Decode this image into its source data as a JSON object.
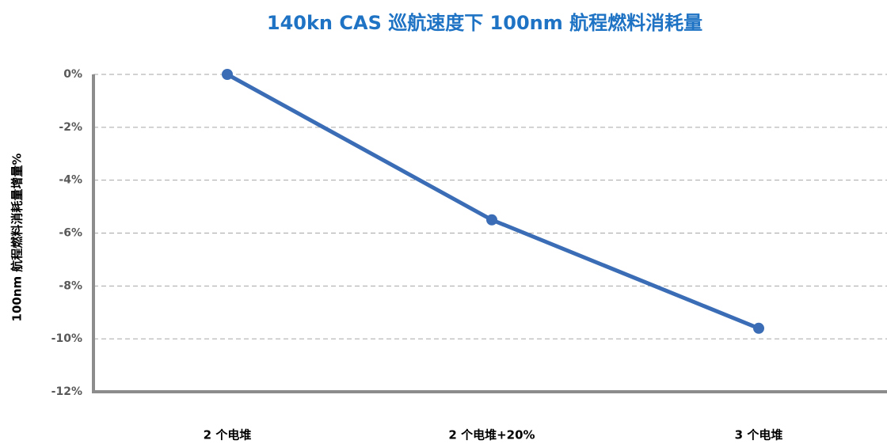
{
  "chart_data": {
    "type": "line",
    "title": "140kn CAS 巡航速度下 100nm 航程燃料消耗量",
    "y_label": "100nm 航程燃料消耗量增量%",
    "categories": [
      "2 个电堆",
      "2 个电堆+20%",
      "3 个电堆"
    ],
    "values": [
      0,
      -5.5,
      -9.6
    ],
    "color": "#3a6db5",
    "ylim": [
      -12,
      0
    ],
    "yticks": [
      {
        "value": 0,
        "label": "0%"
      },
      {
        "value": -2,
        "label": "-2%"
      },
      {
        "value": -4,
        "label": "-4%"
      },
      {
        "value": -6,
        "label": "-6%"
      },
      {
        "value": -8,
        "label": "-8%"
      },
      {
        "value": -10,
        "label": "-10%"
      },
      {
        "value": -12,
        "label": "-12%"
      }
    ],
    "grid": true
  }
}
